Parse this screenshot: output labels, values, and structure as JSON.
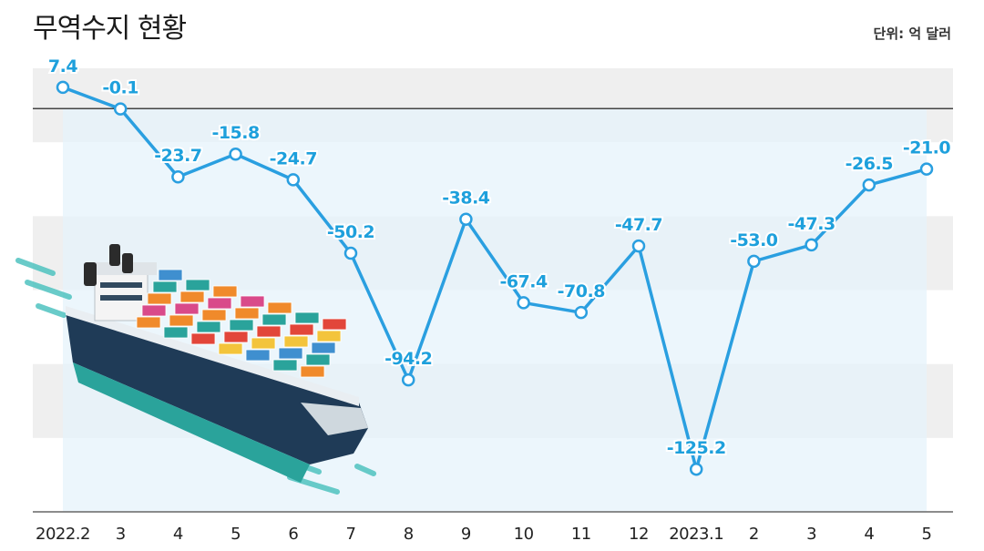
{
  "header": {
    "title": "무역수지 현황",
    "unit": "단위: 억 달러"
  },
  "chart_data": {
    "type": "line",
    "title": "무역수지 현황",
    "unit_label": "단위: 억 달러",
    "categories": [
      "2022.2",
      "3",
      "4",
      "5",
      "6",
      "7",
      "8",
      "9",
      "10",
      "11",
      "12",
      "2023.1",
      "2",
      "3",
      "4",
      "5"
    ],
    "values": [
      7.4,
      -0.1,
      -23.7,
      -15.8,
      -24.7,
      -50.2,
      -94.2,
      -38.4,
      -67.4,
      -70.8,
      -47.7,
      -125.2,
      -53.0,
      -47.3,
      -26.5,
      -21.0
    ],
    "value_labels": [
      "7.4",
      "-0.1",
      "-23.7",
      "-15.8",
      "-24.7",
      "-50.2",
      "-94.2",
      "-38.4",
      "-67.4",
      "-70.8",
      "-47.7",
      "-125.2",
      "-53.0",
      "-47.3",
      "-26.5",
      "-21.0"
    ],
    "ylim": [
      -140,
      14
    ],
    "zero_line": true,
    "grid": "alternating horizontal bands",
    "colors": {
      "line": "#2a9fe0",
      "label": "#1ea0dc",
      "band": "#efefef",
      "area": "#e6f3fb"
    }
  }
}
